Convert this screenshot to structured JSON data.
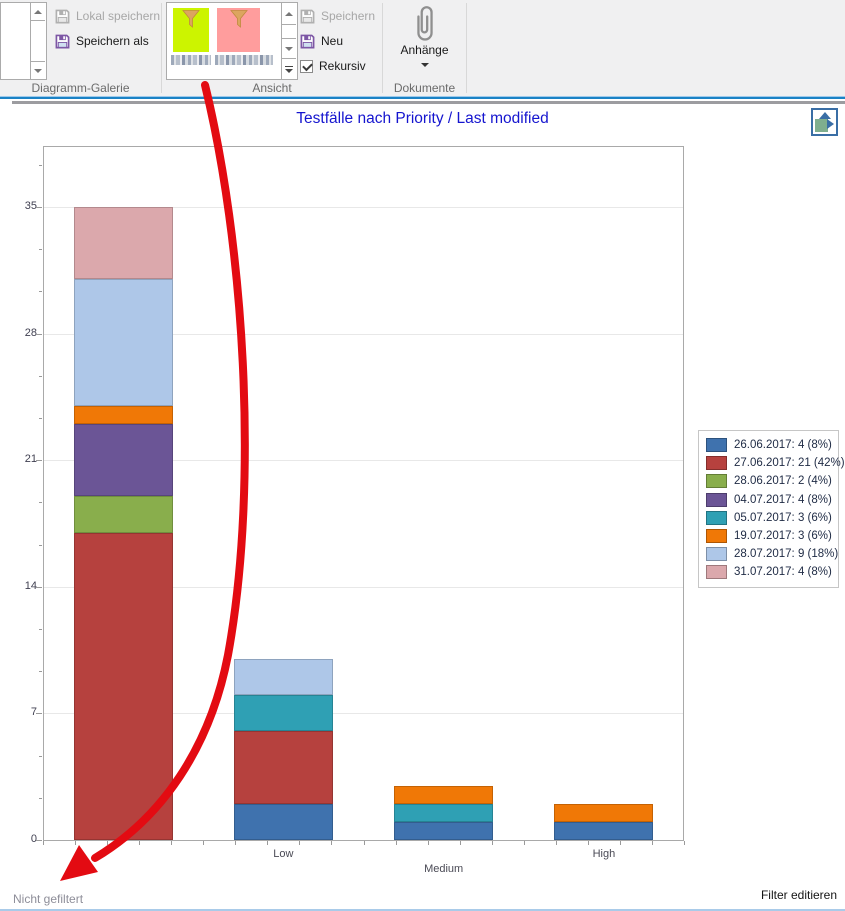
{
  "ribbon": {
    "diagram_gallery": {
      "label": "Diagramm-Galerie",
      "local_save_label": "Lokal speichern",
      "save_as_label": "Speichern als"
    },
    "view": {
      "label": "Ansicht",
      "save_label": "Speichern",
      "new_label": "Neu",
      "recursive_label": "Rekursiv",
      "recursive_checked": true,
      "thumbnails": [
        {
          "name": "filter-view-green",
          "color": "#ccf400"
        },
        {
          "name": "filter-view-red",
          "color": "#ff9d9d"
        }
      ]
    },
    "documents": {
      "label": "Dokumente",
      "attachments_label": "Anhänge"
    }
  },
  "chart": {
    "title": "Testfälle nach Priority / Last modified"
  },
  "chart_data": {
    "type": "bar",
    "stacked": true,
    "title": "Testfälle nach Priority / Last modified",
    "categories": [
      "",
      "Low",
      "Medium",
      "High"
    ],
    "category_totals": [
      35,
      10,
      3,
      2
    ],
    "series": [
      {
        "name": "26.06.2017",
        "legend_label": "26.06.2017: 4 (8%)",
        "total": 4,
        "color": "#3f72ae",
        "values": [
          0,
          2,
          1,
          1
        ]
      },
      {
        "name": "27.06.2017",
        "legend_label": "27.06.2017: 21 (42%)",
        "total": 21,
        "color": "#b6413e",
        "values": [
          17,
          4,
          0,
          0
        ]
      },
      {
        "name": "28.06.2017",
        "legend_label": "28.06.2017: 2 (4%)",
        "total": 2,
        "color": "#89ae4c",
        "values": [
          2,
          0,
          0,
          0
        ]
      },
      {
        "name": "04.07.2017",
        "legend_label": "04.07.2017: 4 (8%)",
        "total": 4,
        "color": "#6b5596",
        "values": [
          4,
          0,
          0,
          0
        ]
      },
      {
        "name": "05.07.2017",
        "legend_label": "05.07.2017: 3 (6%)",
        "total": 3,
        "color": "#2fa0b4",
        "values": [
          0,
          2,
          1,
          0
        ]
      },
      {
        "name": "19.07.2017",
        "legend_label": "19.07.2017: 3 (6%)",
        "total": 3,
        "color": "#f07806",
        "values": [
          1,
          0,
          1,
          1
        ]
      },
      {
        "name": "28.07.2017",
        "legend_label": "28.07.2017: 9 (18%)",
        "total": 9,
        "color": "#aec7e8",
        "values": [
          7,
          2,
          0,
          0
        ]
      },
      {
        "name": "31.07.2017",
        "legend_label": "31.07.2017: 4 (8%)",
        "total": 4,
        "color": "#dba8ac",
        "values": [
          4,
          0,
          0,
          0
        ]
      }
    ],
    "xlabel": "",
    "ylabel": "",
    "yticks": [
      0,
      7,
      14,
      21,
      28,
      35
    ],
    "ylim": [
      0,
      38.3
    ],
    "grid": true,
    "legend_position": "right"
  },
  "footer": {
    "filter_status": "Nicht gefiltert",
    "edit_filter_label": "Filter editieren"
  }
}
